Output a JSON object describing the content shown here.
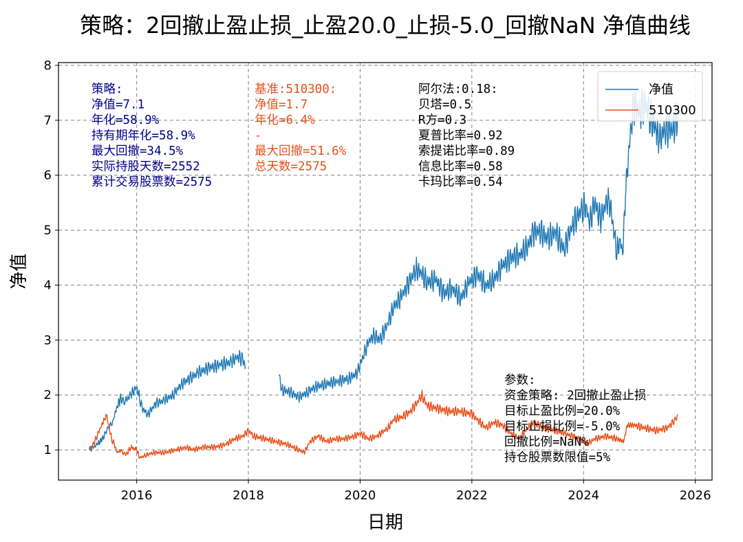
{
  "chart_data": {
    "type": "line",
    "title": "策略：2回撤止盈止损_止盈20.0_止损-5.0_回撤NaN 净值曲线",
    "xlabel": "日期",
    "ylabel": "净值",
    "xlim": [
      2014.6,
      2026.3
    ],
    "ylim": [
      0.45,
      8.05
    ],
    "x_ticks": [
      2016,
      2018,
      2020,
      2022,
      2024,
      2026
    ],
    "y_ticks": [
      1,
      2,
      3,
      4,
      5,
      6,
      7,
      8
    ],
    "grid": true,
    "legend_position": "top-right",
    "colors": {
      "strategy": "#1f77b4",
      "benchmark": "#e8501a",
      "stats": "#00008b",
      "text": "#000000",
      "grid": "#808080"
    },
    "series": [
      {
        "name": "净值",
        "segments": [
          [
            [
              2015.15,
              1.0
            ],
            [
              2015.3,
              1.1
            ],
            [
              2015.42,
              1.25
            ],
            [
              2015.5,
              1.4
            ],
            [
              2015.58,
              1.55
            ],
            [
              2015.65,
              1.8
            ],
            [
              2015.72,
              1.95
            ],
            [
              2015.8,
              1.9
            ],
            [
              2015.9,
              2.0
            ],
            [
              2016.0,
              2.15
            ],
            [
              2016.05,
              1.95
            ],
            [
              2016.1,
              1.75
            ],
            [
              2016.2,
              1.65
            ],
            [
              2016.35,
              1.85
            ],
            [
              2016.5,
              1.9
            ],
            [
              2016.65,
              2.0
            ],
            [
              2016.8,
              2.2
            ],
            [
              2016.95,
              2.3
            ],
            [
              2017.1,
              2.4
            ],
            [
              2017.3,
              2.5
            ],
            [
              2017.5,
              2.55
            ],
            [
              2017.7,
              2.6
            ],
            [
              2017.8,
              2.7
            ],
            [
              2017.9,
              2.65
            ],
            [
              2017.95,
              2.5
            ]
          ],
          [
            [
              2018.55,
              2.35
            ],
            [
              2018.6,
              2.1
            ],
            [
              2018.75,
              2.05
            ],
            [
              2018.9,
              1.95
            ],
            [
              2019.05,
              2.05
            ],
            [
              2019.2,
              2.15
            ],
            [
              2019.4,
              2.2
            ],
            [
              2019.6,
              2.25
            ],
            [
              2019.8,
              2.3
            ],
            [
              2019.95,
              2.4
            ],
            [
              2020.05,
              2.7
            ],
            [
              2020.15,
              2.95
            ],
            [
              2020.25,
              3.1
            ],
            [
              2020.35,
              3.0
            ],
            [
              2020.5,
              3.3
            ],
            [
              2020.6,
              3.6
            ],
            [
              2020.75,
              3.8
            ],
            [
              2020.9,
              4.1
            ],
            [
              2021.0,
              4.3
            ],
            [
              2021.1,
              4.2
            ],
            [
              2021.2,
              4.05
            ],
            [
              2021.35,
              4.1
            ],
            [
              2021.5,
              3.85
            ],
            [
              2021.65,
              3.95
            ],
            [
              2021.8,
              3.75
            ],
            [
              2021.95,
              4.05
            ],
            [
              2022.1,
              4.2
            ],
            [
              2022.25,
              4.0
            ],
            [
              2022.4,
              4.1
            ],
            [
              2022.55,
              4.35
            ],
            [
              2022.7,
              4.5
            ],
            [
              2022.85,
              4.55
            ],
            [
              2023.0,
              4.7
            ],
            [
              2023.1,
              4.95
            ],
            [
              2023.2,
              5.0
            ],
            [
              2023.35,
              4.85
            ],
            [
              2023.5,
              4.95
            ],
            [
              2023.65,
              4.65
            ],
            [
              2023.8,
              5.1
            ],
            [
              2023.95,
              5.35
            ],
            [
              2024.05,
              5.45
            ],
            [
              2024.1,
              5.1
            ],
            [
              2024.2,
              5.5
            ],
            [
              2024.3,
              5.2
            ],
            [
              2024.45,
              5.6
            ],
            [
              2024.5,
              5.3
            ],
            [
              2024.55,
              4.9
            ],
            [
              2024.6,
              4.6
            ],
            [
              2024.65,
              4.85
            ],
            [
              2024.7,
              4.55
            ],
            [
              2024.75,
              5.6
            ],
            [
              2024.8,
              6.3
            ],
            [
              2024.85,
              6.9
            ],
            [
              2024.9,
              7.3
            ],
            [
              2025.0,
              7.15
            ],
            [
              2025.1,
              7.3
            ],
            [
              2025.2,
              7.05
            ],
            [
              2025.3,
              6.8
            ],
            [
              2025.35,
              6.6
            ],
            [
              2025.45,
              6.85
            ],
            [
              2025.6,
              6.85
            ],
            [
              2025.7,
              7.1
            ]
          ]
        ]
      },
      {
        "name": "510300",
        "segments": [
          [
            [
              2015.15,
              1.0
            ],
            [
              2015.25,
              1.15
            ],
            [
              2015.35,
              1.4
            ],
            [
              2015.42,
              1.55
            ],
            [
              2015.45,
              1.65
            ],
            [
              2015.5,
              1.45
            ],
            [
              2015.55,
              1.2
            ],
            [
              2015.6,
              1.1
            ],
            [
              2015.65,
              0.95
            ],
            [
              2015.72,
              1.0
            ],
            [
              2015.8,
              0.9
            ],
            [
              2015.9,
              1.05
            ],
            [
              2016.0,
              1.0
            ],
            [
              2016.05,
              0.85
            ],
            [
              2016.15,
              0.9
            ],
            [
              2016.3,
              0.95
            ],
            [
              2016.5,
              0.95
            ],
            [
              2016.7,
              1.0
            ],
            [
              2016.9,
              1.05
            ],
            [
              2017.0,
              1.0
            ],
            [
              2017.2,
              1.05
            ],
            [
              2017.4,
              1.05
            ],
            [
              2017.6,
              1.1
            ],
            [
              2017.75,
              1.2
            ],
            [
              2017.9,
              1.25
            ],
            [
              2018.0,
              1.35
            ],
            [
              2018.1,
              1.25
            ],
            [
              2018.3,
              1.2
            ],
            [
              2018.5,
              1.15
            ],
            [
              2018.7,
              1.1
            ],
            [
              2018.9,
              1.0
            ],
            [
              2019.0,
              0.95
            ],
            [
              2019.1,
              1.15
            ],
            [
              2019.25,
              1.25
            ],
            [
              2019.4,
              1.15
            ],
            [
              2019.55,
              1.2
            ],
            [
              2019.7,
              1.2
            ],
            [
              2019.9,
              1.25
            ],
            [
              2020.0,
              1.3
            ],
            [
              2020.15,
              1.2
            ],
            [
              2020.3,
              1.25
            ],
            [
              2020.5,
              1.4
            ],
            [
              2020.6,
              1.55
            ],
            [
              2020.75,
              1.6
            ],
            [
              2020.9,
              1.7
            ],
            [
              2021.05,
              1.9
            ],
            [
              2021.1,
              2.0
            ],
            [
              2021.2,
              1.8
            ],
            [
              2021.4,
              1.75
            ],
            [
              2021.6,
              1.7
            ],
            [
              2021.8,
              1.7
            ],
            [
              2022.0,
              1.65
            ],
            [
              2022.1,
              1.55
            ],
            [
              2022.25,
              1.4
            ],
            [
              2022.4,
              1.5
            ],
            [
              2022.55,
              1.45
            ],
            [
              2022.7,
              1.3
            ],
            [
              2022.85,
              1.2
            ],
            [
              2023.0,
              1.4
            ],
            [
              2023.1,
              1.5
            ],
            [
              2023.3,
              1.4
            ],
            [
              2023.5,
              1.35
            ],
            [
              2023.65,
              1.3
            ],
            [
              2023.8,
              1.25
            ],
            [
              2023.95,
              1.2
            ],
            [
              2024.05,
              1.1
            ],
            [
              2024.2,
              1.2
            ],
            [
              2024.4,
              1.25
            ],
            [
              2024.6,
              1.2
            ],
            [
              2024.72,
              1.15
            ],
            [
              2024.78,
              1.45
            ],
            [
              2024.9,
              1.45
            ],
            [
              2025.1,
              1.4
            ],
            [
              2025.3,
              1.35
            ],
            [
              2025.5,
              1.4
            ],
            [
              2025.6,
              1.5
            ],
            [
              2025.68,
              1.65
            ]
          ]
        ]
      }
    ],
    "annotations": {
      "strategy_stats": [
        "策略:",
        "净值=7.1",
        "年化=58.9%",
        "持有期年化=58.9%",
        "最大回撤=34.5%",
        "实际持股天数=2552",
        "累计交易股票数=2575"
      ],
      "benchmark_stats": [
        "基准:510300:",
        "净值=1.7",
        "年化=6.4%",
        "-",
        "最大回撤=51.6%",
        "总天数=2575"
      ],
      "ratios": [
        "阿尔法:0.18:",
        "贝塔=0.5",
        "R方=0.3",
        "夏普比率=0.92",
        "索提诺比率=0.89",
        "信息比率=0.58",
        "卡玛比率=0.54"
      ],
      "params": [
        "参数:",
        "资金策略: 2回撤止盈止损",
        "目标止盈比例=20.0%",
        "目标止损比例=-5.0%",
        "回撤比例=NaN%",
        "持仓股票数限值=5%"
      ]
    }
  }
}
